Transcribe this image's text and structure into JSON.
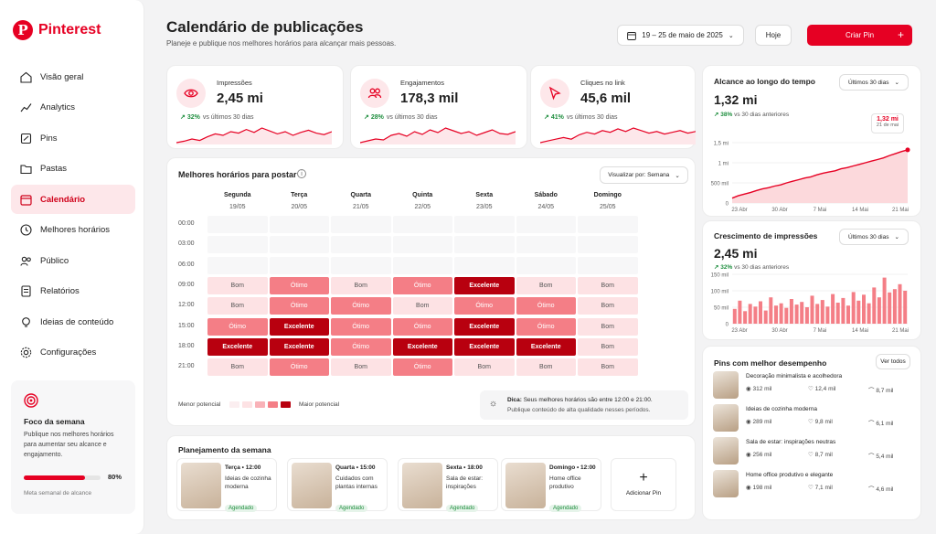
{
  "brand": {
    "name": "Pinterest",
    "accent": "#e60023"
  },
  "nav": [
    {
      "label": "Visão geral",
      "icon": "home-icon"
    },
    {
      "label": "Analytics",
      "icon": "analytics-icon"
    },
    {
      "label": "Pins",
      "icon": "pins-icon"
    },
    {
      "label": "Pastas",
      "icon": "folder-icon"
    },
    {
      "label": "Calendário",
      "icon": "calendar-icon",
      "active": true
    },
    {
      "label": "Melhores horários",
      "icon": "clock-icon"
    },
    {
      "label": "Público",
      "icon": "audience-icon"
    },
    {
      "label": "Relatórios",
      "icon": "reports-icon"
    },
    {
      "label": "Ideias de conteúdo",
      "icon": "bulb-icon"
    },
    {
      "label": "Configurações",
      "icon": "gear-icon"
    }
  ],
  "week_focus": {
    "title": "Foco da semana",
    "text": "Publique nos melhores horários para aumentar seu alcance e engajamento.",
    "progress": 80,
    "progress_label": "80%",
    "footer": "Meta semanal de alcance"
  },
  "header": {
    "title": "Calendário de publicações",
    "subtitle": "Planeje e publique nos melhores horários para alcançar mais pessoas.",
    "date_range": "19 – 25 de maio de 2025",
    "today_label": "Hoje",
    "create_label": "Criar Pin"
  },
  "kpis": [
    {
      "label": "Impressões",
      "value": "2,45 mi",
      "delta": "32%",
      "delta_text": "vs últimos 30 dias",
      "icon": "eye-icon"
    },
    {
      "label": "Engajamentos",
      "value": "178,3 mil",
      "delta": "28%",
      "delta_text": "vs últimos 30 dias",
      "icon": "people-icon"
    },
    {
      "label": "Cliques no link",
      "value": "45,6 mil",
      "delta": "41%",
      "delta_text": "vs últimos 30 dias",
      "icon": "cursor-icon"
    }
  ],
  "heatmap": {
    "title": "Melhores horários para postar",
    "view_label": "Visualizar por: Semana",
    "days": [
      {
        "name": "Segunda",
        "date": "19/05"
      },
      {
        "name": "Terça",
        "date": "20/05"
      },
      {
        "name": "Quarta",
        "date": "21/05"
      },
      {
        "name": "Quinta",
        "date": "22/05"
      },
      {
        "name": "Sexta",
        "date": "23/05"
      },
      {
        "name": "Sábado",
        "date": "24/05"
      },
      {
        "name": "Domingo",
        "date": "25/05"
      }
    ],
    "times": [
      "00:00",
      "03:00",
      "06:00",
      "09:00",
      "12:00",
      "15:00",
      "18:00",
      "21:00"
    ],
    "rows": [
      [
        "",
        "",
        "",
        "",
        "",
        "",
        ""
      ],
      [
        "",
        "",
        "",
        "",
        "",
        "",
        ""
      ],
      [
        "",
        "",
        "",
        "",
        "",
        "",
        ""
      ],
      [
        "Bom",
        "Ótimo",
        "Bom",
        "Ótimo",
        "Excelente",
        "Bom",
        "Bom"
      ],
      [
        "Bom",
        "Ótimo",
        "Ótimo",
        "Bom",
        "Ótimo",
        "Ótimo",
        "Bom"
      ],
      [
        "Ótimo",
        "Excelente",
        "Ótimo",
        "Ótimo",
        "Excelente",
        "Ótimo",
        "Bom"
      ],
      [
        "Excelente",
        "Excelente",
        "Ótimo",
        "Excelente",
        "Excelente",
        "Excelente",
        "Bom"
      ],
      [
        "Bom",
        "Ótimo",
        "Bom",
        "Ótimo",
        "Bom",
        "Bom",
        "Bom"
      ]
    ],
    "legend_min": "Menor potencial",
    "legend_max": "Maior potencial",
    "tip_label": "Dica:",
    "tip_text": "Seus melhores horários são entre 12:00 e 21:00.",
    "tip_text2": "Publique conteúdo de alta qualidade nesses períodos.",
    "colors": {
      "Bom": "#fde2e4",
      "Ótimo": "#f47e86",
      "Excelente": "#b8000f"
    }
  },
  "plan": {
    "title": "Planejamento da semana",
    "items": [
      {
        "day": "Terça • 12:00",
        "text": "Ideias de cozinha moderna",
        "status": "Agendado"
      },
      {
        "day": "Quarta • 15:00",
        "text": "Cuidados com plantas internas",
        "status": "Agendado"
      },
      {
        "day": "Sexta • 18:00",
        "text": "Sala de estar: inspirações",
        "status": "Agendado"
      },
      {
        "day": "Domingo • 12:00",
        "text": "Home office produtivo",
        "status": "Agendado"
      }
    ],
    "add_label": "Adicionar Pin"
  },
  "reach": {
    "title": "Alcance ao longo do tempo",
    "period": "Últimos 30 dias",
    "value": "1,32 mi",
    "delta": "38%",
    "delta_text": "vs 30 dias anteriores",
    "tooltip_value": "1,32 mi",
    "tooltip_date": "21 de mai"
  },
  "growth": {
    "title": "Crescimento de impressões",
    "period": "Últimos 30 dias",
    "value": "2,45 mi",
    "delta": "32%",
    "delta_text": "vs 30 dias anteriores"
  },
  "chart_data": [
    {
      "type": "line",
      "title": "Alcance ao longo do tempo",
      "x_ticks": [
        "23 Abr",
        "30 Abr",
        "7 Mai",
        "14 Mai",
        "21 Mai"
      ],
      "y_ticks": [
        "0",
        "500 mil",
        "1 mi",
        "1,5 mi"
      ],
      "ylim": [
        0,
        1500000
      ],
      "values": [
        120000,
        180000,
        220000,
        260000,
        310000,
        350000,
        380000,
        420000,
        450000,
        500000,
        540000,
        580000,
        620000,
        650000,
        700000,
        740000,
        770000,
        800000,
        850000,
        880000,
        920000,
        960000,
        1000000,
        1040000,
        1080000,
        1120000,
        1180000,
        1230000,
        1280000,
        1320000
      ],
      "grid": true
    },
    {
      "type": "bar",
      "title": "Crescimento de impressões",
      "x_ticks": [
        "23 Abr",
        "30 Abr",
        "7 Mai",
        "14 Mai",
        "21 Mai"
      ],
      "y_ticks": [
        "0",
        "50 mil",
        "100 mil",
        "150 mil"
      ],
      "ylim": [
        0,
        150000
      ],
      "values": [
        45000,
        70000,
        38000,
        60000,
        52000,
        68000,
        40000,
        80000,
        55000,
        62000,
        48000,
        75000,
        58000,
        66000,
        50000,
        85000,
        60000,
        72000,
        52000,
        90000,
        64000,
        78000,
        55000,
        96000,
        70000,
        88000,
        62000,
        110000,
        80000,
        140000,
        95000,
        105000,
        120000,
        100000
      ],
      "grid": true
    },
    {
      "type": "line",
      "title": "Impressões",
      "values": [
        40,
        42,
        45,
        43,
        48,
        52,
        50,
        55,
        53,
        58,
        54,
        60,
        56,
        52,
        55,
        50,
        54,
        57,
        53,
        51,
        55
      ]
    },
    {
      "type": "line",
      "title": "Engajamentos",
      "values": [
        38,
        40,
        42,
        41,
        46,
        48,
        45,
        50,
        47,
        52,
        49,
        54,
        51,
        48,
        50,
        46,
        49,
        52,
        48,
        47,
        50
      ]
    },
    {
      "type": "line",
      "title": "Cliques no link",
      "values": [
        36,
        38,
        40,
        42,
        40,
        45,
        48,
        46,
        50,
        48,
        52,
        49,
        53,
        50,
        47,
        49,
        46,
        48,
        50,
        47,
        49
      ]
    }
  ],
  "top_pins": {
    "title": "Pins com melhor desempenho",
    "view_all": "Ver todos",
    "items": [
      {
        "title": "Decoração minimalista e acolhedora",
        "views": "312 mil",
        "likes": "12,4 mil",
        "saves": "8,7 mil"
      },
      {
        "title": "Ideias de cozinha moderna",
        "views": "289 mil",
        "likes": "9,8 mil",
        "saves": "6,1 mil"
      },
      {
        "title": "Sala de estar: inspirações neutras",
        "views": "256 mil",
        "likes": "8,7 mil",
        "saves": "5,4 mil"
      },
      {
        "title": "Home office produtivo e elegante",
        "views": "198 mil",
        "likes": "7,1 mil",
        "saves": "4,6 mil"
      }
    ]
  }
}
